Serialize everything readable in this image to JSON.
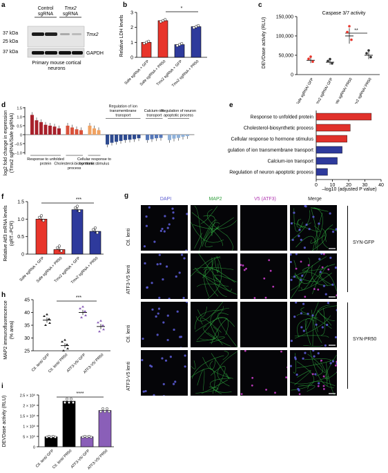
{
  "panel_a": {
    "letter": "a",
    "col_control": "Control",
    "col_control2": "sgRNA",
    "col_tmx": "Tmx2",
    "col_tmx2": "sgRNA",
    "kda37": "37 kDa",
    "kda25": "25 kDa",
    "kda37b": "37 kDa",
    "band1": "Tmx2",
    "band2": "GAPDH",
    "caption1": "Primary mouse cortical",
    "caption2": "neurons"
  },
  "panel_b": {
    "letter": "b",
    "ylabel": "Relative LDH levels",
    "sig": "*",
    "colors": {
      "safe": "#e8352b",
      "tmx": "#2e3a9c"
    },
    "chart_data": {
      "type": "bar",
      "categories": [
        "Safe sgRNA + GFP",
        "Safe sgRNA + PR50",
        "Tmx2 sgRNA + GFP",
        "Tmx2 sgRNA + PR50"
      ],
      "values": [
        1.0,
        2.45,
        0.85,
        2.05
      ],
      "errors": [
        0.05,
        0.05,
        0.05,
        0.1
      ],
      "yticks": [
        "0",
        "1",
        "2",
        "3"
      ],
      "ylim": [
        0,
        3
      ]
    }
  },
  "panel_c": {
    "letter": "c",
    "title": "Caspase 3/7 activity",
    "ylabel": "DEVDase activity (RLU)",
    "sig": "**",
    "chart_data": {
      "type": "scatter",
      "categories": [
        "Safe sgRNA/ GFP",
        "Tmx2 sgRNA/ GFP",
        "Safe sgRNA/ PR50",
        "Tmx2 sgRNA/ PR50"
      ],
      "values": [
        37000,
        32000,
        100000,
        50000
      ],
      "yticks": [
        "0",
        "50,000",
        "100,000",
        "150,000"
      ],
      "ylim": [
        0,
        150000
      ]
    }
  },
  "panel_d": {
    "letter": "d",
    "ylabel": "log2 fold change in expression",
    "ylabel2": "(Tmx2 sgRNA/Safe sgRNA)",
    "yticks": [
      "1.5",
      "1.0",
      "0.5",
      "0",
      "–0.5",
      "–1.0"
    ],
    "groups": [
      {
        "label": "Response to unfolded protein",
        "color": "#a8212b",
        "values": [
          1.1,
          0.8,
          0.7,
          0.55,
          0.5,
          0.45,
          0.35
        ]
      },
      {
        "label": "Cholesterol-biosynthetic process",
        "color": "#d9523b",
        "values": [
          0.5,
          0.4,
          0.3,
          0.25
        ]
      },
      {
        "label": "Cellular response to hormone stimulus",
        "color": "#f0a262",
        "values": [
          0.5,
          0.35,
          0.25
        ]
      },
      {
        "label": "Regulation of ion transmembrane transport",
        "color": "#2d4a8f",
        "values": [
          -0.55,
          -0.45,
          -0.4,
          -0.35,
          -0.3,
          -0.28,
          -0.25,
          -0.2
        ]
      },
      {
        "label": "Calcium-ion transport",
        "color": "#5577b8",
        "values": [
          -0.3,
          -0.25,
          -0.2,
          -0.18
        ]
      },
      {
        "label": "Regulation of neuron apoptotic process",
        "color": "#8fb1d9",
        "values": [
          -0.3,
          -0.22,
          -0.18,
          -0.12,
          -0.08
        ]
      }
    ]
  },
  "panel_e": {
    "letter": "e",
    "xlabel": "–log10 (adjusted P value)",
    "chart_data": {
      "type": "bar",
      "categories": [
        "Response to unfolded protein",
        "Cholesterol-biosynthetic process",
        "Cellular response to hormone stimulus",
        "Regulation of ion transmembrane transport",
        "Calcium-ion transport",
        "Regulation of neuron apoptotic process"
      ],
      "values": [
        34,
        21,
        19,
        16,
        13,
        7
      ],
      "colors": [
        "#e0312b",
        "#e0312b",
        "#e0312b",
        "#2e3a9c",
        "#2e3a9c",
        "#2e3a9c"
      ],
      "xticks": [
        "0",
        "10",
        "20",
        "30",
        "40"
      ],
      "xlim": [
        0,
        40
      ]
    }
  },
  "panel_f": {
    "letter": "f",
    "ylabel": "Relative Atf3 mRNA levels",
    "ylabel2": "(qRT–PCR)",
    "sig": "***",
    "chart_data": {
      "type": "bar",
      "categories": [
        "Safe sgRNA + GFP",
        "Safe sgRNA + PR50",
        "Tmx2 sgRNA + GFP",
        "Tmx2 sgRNA + PR50"
      ],
      "values": [
        1.0,
        0.13,
        1.27,
        0.65
      ],
      "colors": [
        "#e8352b",
        "#e8352b",
        "#2e3a9c",
        "#2e3a9c"
      ],
      "yticks": [
        "0",
        "0.5",
        "1.0",
        "1.5"
      ],
      "ylim": [
        0,
        1.5
      ]
    }
  },
  "panel_g": {
    "letter": "g",
    "columns": [
      "DAPI",
      "MAP2",
      "V5 (ATF3)",
      "Merge"
    ],
    "column_colors": [
      "#5a5ad0",
      "#2e9e3a",
      "#b034b0",
      "#222222"
    ],
    "rows": [
      "Ctl. lenti",
      "ATF3-V5 lenti",
      "Ctl. lenti",
      "ATF3-V5 lenti"
    ],
    "group1": "SYN-GFP",
    "group2": "SYN-PR50"
  },
  "panel_h": {
    "letter": "h",
    "ylabel": "MAP2 immunofluorescence",
    "ylabel2": "(% area)",
    "sig": "***",
    "chart_data": {
      "type": "scatter",
      "categories": [
        "Ctl. lenti/ GFP",
        "Ctl. lenti/ PR50",
        "ATF3-V5/ GFP",
        "ATF3-V5/ PR50"
      ],
      "values": [
        37,
        27,
        40,
        34.5
      ],
      "yticks": [
        "25",
        "30",
        "35",
        "40",
        "45"
      ],
      "ylim": [
        25,
        45
      ]
    }
  },
  "panel_i": {
    "letter": "i",
    "ylabel": "DEVDase activity (RLU)",
    "sig": "****",
    "chart_data": {
      "type": "bar",
      "categories": [
        "Ctl. lenti/ GFP",
        "Ctl. lenti/ PR50",
        "ATF3-V5/ GFP",
        "ATF3-V5/ PR50"
      ],
      "values": [
        480000,
        2200000,
        480000,
        1750000
      ],
      "colors": [
        "#000000",
        "#000000",
        "#8a5fb8",
        "#8a5fb8"
      ],
      "yticks": [
        "0",
        "5 × 10⁵",
        "1 × 10⁶",
        "1.5 × 10⁶",
        "2 × 10⁶",
        "2.5 × 10⁶"
      ],
      "ylim": [
        0,
        2500000
      ]
    }
  }
}
